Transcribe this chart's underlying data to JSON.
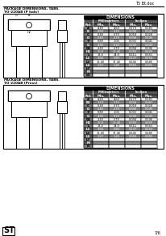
{
  "title_right": "T5 Bt.doc",
  "section1_title": "PACKAGE DIMENSIONS, TABS.",
  "section1_subtitle": "TO-220AB (P hole)",
  "section2_title": "PACKAGE DIMENSIONS, TABS.",
  "section2_subtitle": "TO-220AB (Press)",
  "logo_text": "ST",
  "page_num": "7/6",
  "bg_color": "#ffffff",
  "table1_header": "DIMENSIONS",
  "table1_subheader1": "Millimeters",
  "table1_subheader2": "Inches",
  "col_labels": [
    "Ref.",
    "Min.",
    "Max.",
    "Min.",
    "Max."
  ],
  "rows1": [
    [
      "A",
      "4.40",
      "4.60",
      "0.173",
      "0.181"
    ],
    [
      "B",
      "2.50",
      "2.70",
      "0.098",
      "0.106"
    ],
    [
      "C",
      "0.48",
      "0.70",
      "0.018",
      "0.028"
    ],
    [
      "D",
      "2.40",
      "2.70",
      "0.094",
      "0.106"
    ],
    [
      "F",
      "0.80",
      "1.05",
      "0.031",
      "0.041"
    ],
    [
      "G",
      "4.95",
      "5.10",
      "0.194",
      "0.200"
    ],
    [
      "G1",
      "2.40",
      "2.70",
      "0.094",
      "0.106"
    ],
    [
      "H2",
      "10.0",
      "10.40",
      "0.393",
      "0.409"
    ],
    [
      "L",
      "13.0",
      "14.0",
      "0.511",
      "0.551"
    ],
    [
      "L1",
      "3.50",
      "3.93",
      "0.137",
      "0.154"
    ],
    [
      "L2",
      "16.40",
      "17.40",
      "0.645",
      "0.685"
    ],
    [
      "L4",
      "1.27",
      "1.40",
      "0.050",
      "0.055"
    ],
    [
      "L7",
      "",
      "",
      "",
      ""
    ],
    [
      "M",
      "",
      "",
      "",
      ""
    ],
    [
      "d1",
      "",
      "",
      "",
      ""
    ]
  ],
  "rows2": [
    [
      "A",
      "4.40",
      "4.60",
      "0.173",
      "0.181"
    ],
    [
      "B1",
      "1.14",
      "1.70",
      "0.044",
      "0.067"
    ],
    [
      "C",
      "0.48",
      "0.70",
      "0.018",
      "0.028"
    ],
    [
      "D",
      "2.40",
      "2.70",
      "0.094",
      "0.106"
    ],
    [
      "F",
      "0.80",
      "1.05",
      "0.031",
      "0.041"
    ],
    [
      "G",
      "4.95",
      "5.10",
      "0.194",
      "0.200"
    ],
    [
      "G1",
      "2.40",
      "2.70",
      "0.094",
      "0.106"
    ],
    [
      "H2",
      "10.0",
      "10.40",
      "0.393",
      "0.409"
    ],
    [
      "L",
      "13.0",
      "14.0",
      "0.511",
      "0.551"
    ],
    [
      "L1",
      "3.50",
      "3.93",
      "0.137",
      "0.154"
    ],
    [
      "L2",
      "16.40",
      "17.40",
      "0.645",
      "0.685"
    ],
    [
      "L4",
      "1.27",
      "1.40",
      "0.050",
      "0.055"
    ],
    [
      "L7",
      "",
      "",
      "",
      ""
    ],
    [
      "M",
      "",
      "",
      "",
      ""
    ],
    [
      "N",
      "",
      "",
      "",
      ""
    ]
  ]
}
